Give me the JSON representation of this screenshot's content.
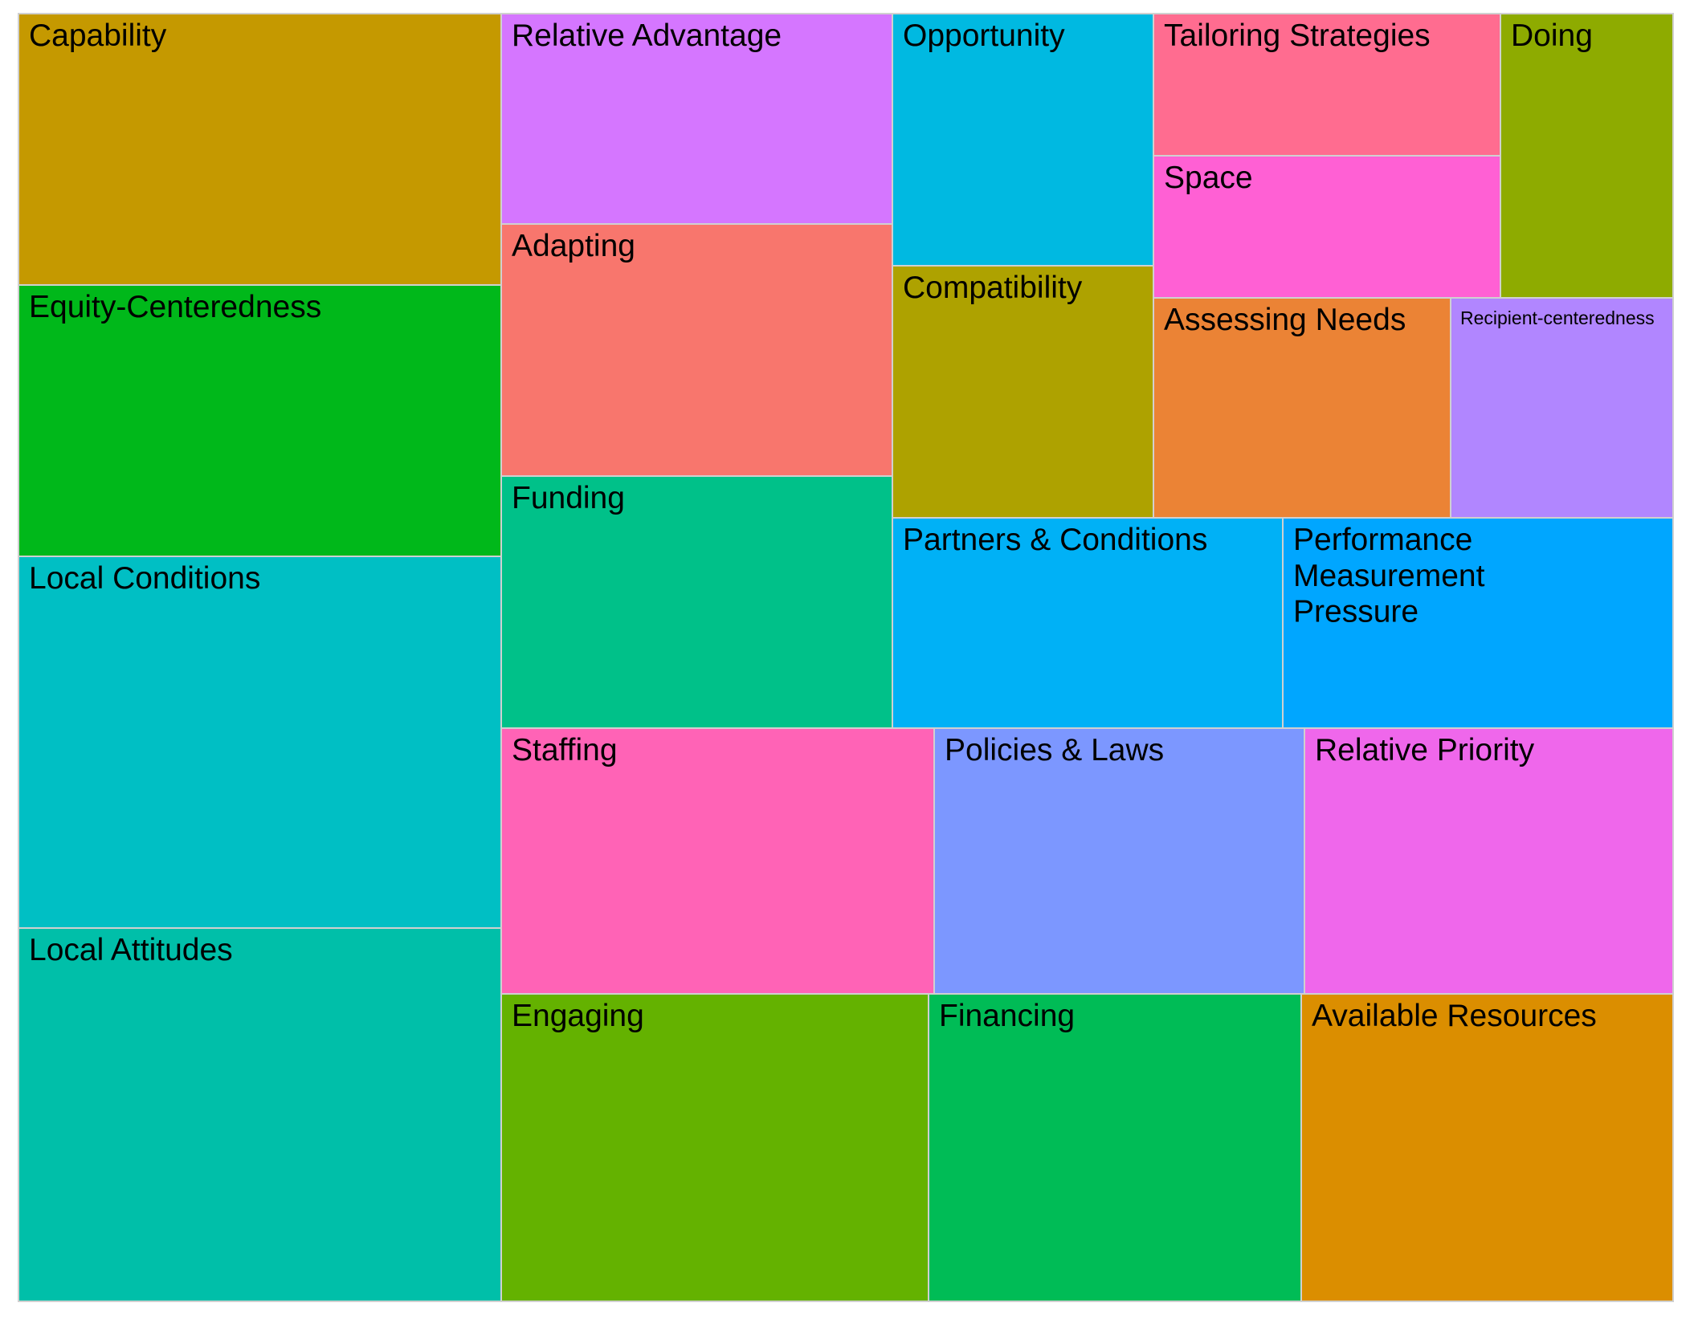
{
  "chart_data": {
    "type": "treemap",
    "title": "",
    "tiles": [
      {
        "label": "Capability",
        "value": 8,
        "color": "#C59900"
      },
      {
        "label": "Equity-Centeredness",
        "value": 8,
        "color": "#00B81A"
      },
      {
        "label": "Local Conditions",
        "value": 11,
        "color": "#00BFC4"
      },
      {
        "label": "Local Attitudes",
        "value": 11,
        "color": "#00BFA9"
      },
      {
        "label": "Relative Advantage",
        "value": 5,
        "color": "#D576FF"
      },
      {
        "label": "Adapting",
        "value": 6,
        "color": "#F8766D"
      },
      {
        "label": "Funding",
        "value": 6,
        "color": "#00C189"
      },
      {
        "label": "Opportunity",
        "value": 4,
        "color": "#00B9E1"
      },
      {
        "label": "Compatibility",
        "value": 4,
        "color": "#AEA200"
      },
      {
        "label": "Tailoring Strategies",
        "value": 3,
        "color": "#FF6C90"
      },
      {
        "label": "Space",
        "value": 3,
        "color": "#FF60D4"
      },
      {
        "label": "Doing",
        "value": 3,
        "color": "#8EAB00"
      },
      {
        "label": "Assessing Needs",
        "value": 3,
        "color": "#EB8335"
      },
      {
        "label": "Recipient-centeredness",
        "value": 2,
        "color": "#B186FF"
      },
      {
        "label": "Partners & Conditions",
        "value": 4,
        "color": "#00B1F6"
      },
      {
        "label": "Performance Measurement Pressure",
        "value": 4,
        "color": "#00A6FF"
      },
      {
        "label": "Staffing",
        "value": 6,
        "color": "#FF63B6"
      },
      {
        "label": "Policies & Laws",
        "value": 5,
        "color": "#7C97FF"
      },
      {
        "label": "Relative Priority",
        "value": 5,
        "color": "#EF67EB"
      },
      {
        "label": "Engaging",
        "value": 7,
        "color": "#64B200"
      },
      {
        "label": "Financing",
        "value": 6,
        "color": "#00BC56"
      },
      {
        "label": "Available Resources",
        "value": 6,
        "color": "#DB8E00"
      }
    ]
  }
}
